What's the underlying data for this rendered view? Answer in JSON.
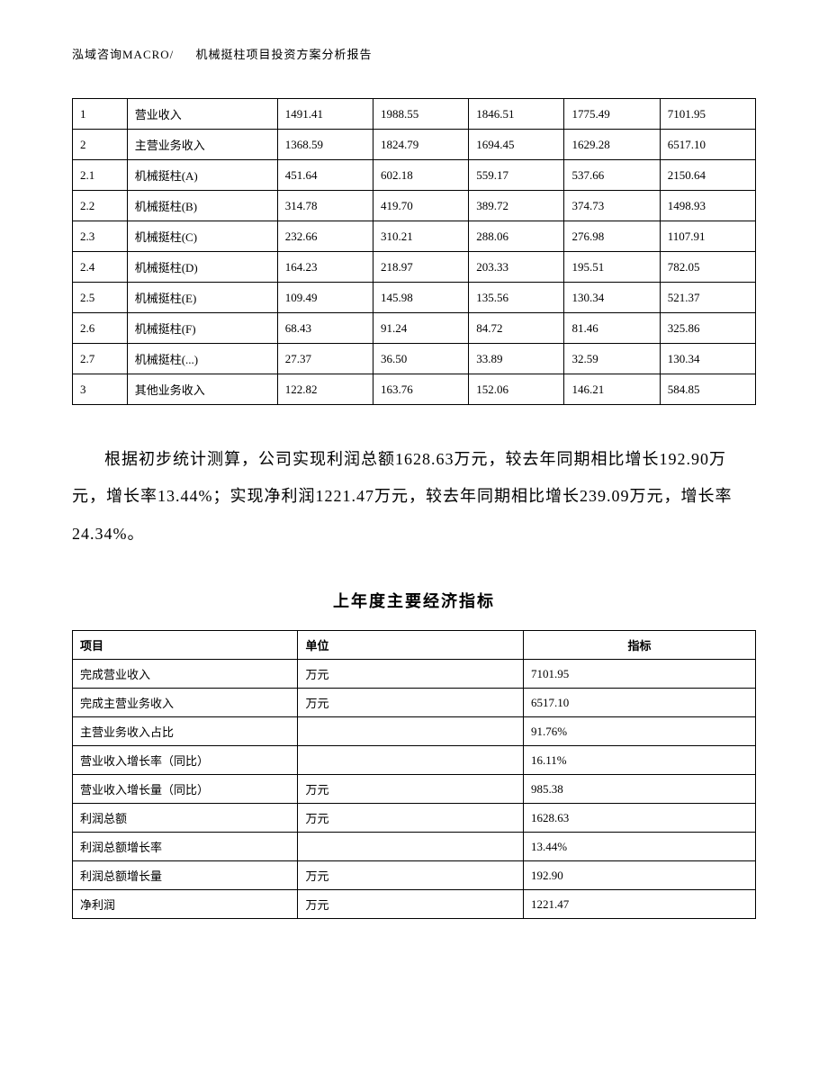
{
  "header": {
    "left": "泓域咨询MACRO/",
    "right": "机械挺柱项目投资方案分析报告"
  },
  "table1": {
    "col_widths_pct": [
      8,
      22,
      14,
      14,
      14,
      14,
      14
    ],
    "border_color": "#000000",
    "font_size_pt": 10,
    "rows": [
      [
        "1",
        "营业收入",
        "1491.41",
        "1988.55",
        "1846.51",
        "1775.49",
        "7101.95"
      ],
      [
        "2",
        "主营业务收入",
        "1368.59",
        "1824.79",
        "1694.45",
        "1629.28",
        "6517.10"
      ],
      [
        "2.1",
        "机械挺柱(A)",
        "451.64",
        "602.18",
        "559.17",
        "537.66",
        "2150.64"
      ],
      [
        "2.2",
        "机械挺柱(B)",
        "314.78",
        "419.70",
        "389.72",
        "374.73",
        "1498.93"
      ],
      [
        "2.3",
        "机械挺柱(C)",
        "232.66",
        "310.21",
        "288.06",
        "276.98",
        "1107.91"
      ],
      [
        "2.4",
        "机械挺柱(D)",
        "164.23",
        "218.97",
        "203.33",
        "195.51",
        "782.05"
      ],
      [
        "2.5",
        "机械挺柱(E)",
        "109.49",
        "145.98",
        "135.56",
        "130.34",
        "521.37"
      ],
      [
        "2.6",
        "机械挺柱(F)",
        "68.43",
        "91.24",
        "84.72",
        "81.46",
        "325.86"
      ],
      [
        "2.7",
        "机械挺柱(...)",
        "27.37",
        "36.50",
        "33.89",
        "32.59",
        "130.34"
      ],
      [
        "3",
        "其他业务收入",
        "122.82",
        "163.76",
        "152.06",
        "146.21",
        "584.85"
      ]
    ]
  },
  "paragraph": "根据初步统计测算，公司实现利润总额1628.63万元，较去年同期相比增长192.90万元，增长率13.44%；实现净利润1221.47万元，较去年同期相比增长239.09万元，增长率24.34%。",
  "section_title": "上年度主要经济指标",
  "table2": {
    "col_widths_pct": [
      33,
      33,
      34
    ],
    "border_color": "#000000",
    "font_size_pt": 10,
    "headers": [
      "项目",
      "单位",
      "指标"
    ],
    "rows": [
      [
        "完成营业收入",
        "万元",
        "7101.95"
      ],
      [
        "完成主营业务收入",
        "万元",
        "6517.10"
      ],
      [
        "主营业务收入占比",
        "",
        "91.76%"
      ],
      [
        "营业收入增长率（同比）",
        "",
        "16.11%"
      ],
      [
        "营业收入增长量（同比）",
        "万元",
        "985.38"
      ],
      [
        "利润总额",
        "万元",
        "1628.63"
      ],
      [
        "利润总额增长率",
        "",
        "13.44%"
      ],
      [
        "利润总额增长量",
        "万元",
        "192.90"
      ],
      [
        "净利润",
        "万元",
        "1221.47"
      ]
    ]
  }
}
